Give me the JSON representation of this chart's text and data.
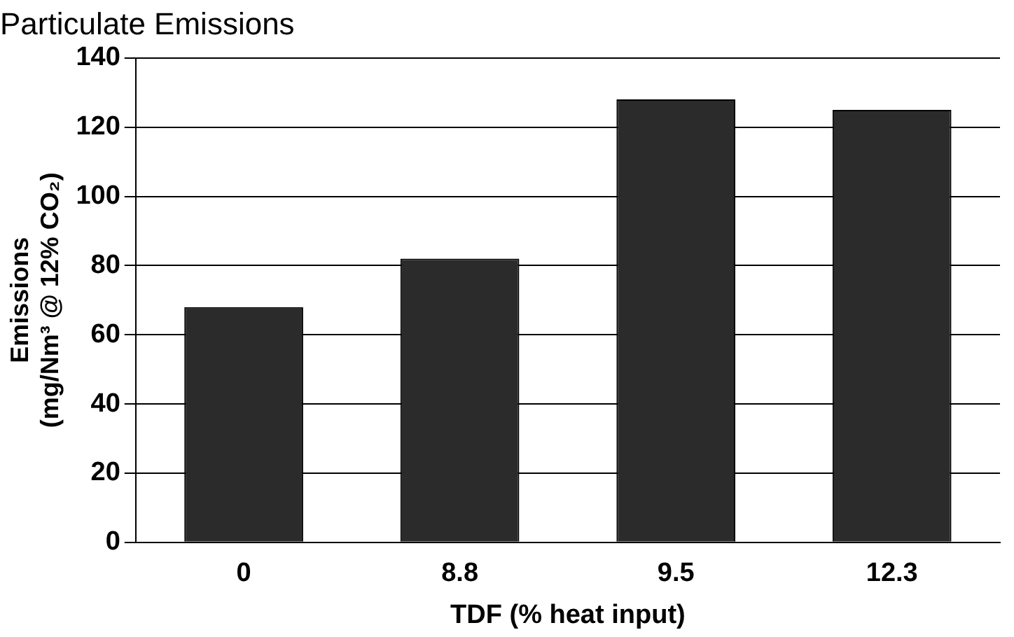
{
  "chart_data": {
    "type": "bar",
    "title": "Particulate Emissions",
    "xlabel": "TDF (% heat input)",
    "ylabel": "Emissions\n(mg/Nm³ @ 12% CO₂)",
    "categories": [
      "0",
      "8.8",
      "9.5",
      "12.3"
    ],
    "values": [
      68,
      82,
      128,
      125
    ],
    "color": "#2b2b2b",
    "ylim": [
      0,
      140
    ],
    "yticks": [
      0,
      20,
      40,
      60,
      80,
      100,
      120,
      140
    ],
    "grid": "y",
    "legend": false
  }
}
